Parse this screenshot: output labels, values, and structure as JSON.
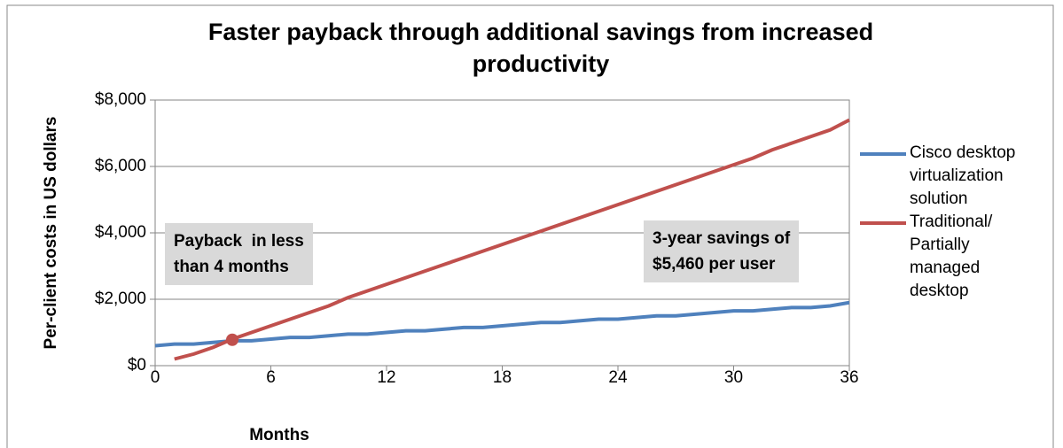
{
  "chart_data": {
    "type": "line",
    "title": "Faster payback through additional savings from increased productivity",
    "x_label": "Months",
    "y_label": "Per-client costs in US dollars",
    "x": [
      0,
      1,
      2,
      3,
      4,
      5,
      6,
      7,
      8,
      9,
      10,
      11,
      12,
      13,
      14,
      15,
      16,
      17,
      18,
      19,
      20,
      21,
      22,
      23,
      24,
      25,
      26,
      27,
      28,
      29,
      30,
      31,
      32,
      33,
      34,
      35,
      36
    ],
    "series": [
      {
        "name": "Cisco desktop virtualization solution",
        "color": "#4f81bd",
        "values": [
          600,
          650,
          650,
          700,
          750,
          750,
          800,
          850,
          850,
          900,
          950,
          950,
          1000,
          1050,
          1050,
          1100,
          1150,
          1150,
          1200,
          1250,
          1300,
          1300,
          1350,
          1400,
          1400,
          1450,
          1500,
          1500,
          1550,
          1600,
          1650,
          1650,
          1700,
          1750,
          1750,
          1800,
          1900
        ]
      },
      {
        "name": "Traditional/ Partially managed desktop",
        "color": "#c0504d",
        "values": [
          null,
          200,
          350,
          550,
          800,
          1000,
          1200,
          1400,
          1600,
          1800,
          2050,
          2250,
          2450,
          2650,
          2850,
          3050,
          3250,
          3450,
          3650,
          3850,
          4050,
          4250,
          4450,
          4650,
          4850,
          5050,
          5250,
          5450,
          5650,
          5850,
          6050,
          6250,
          6500,
          6700,
          6900,
          7100,
          7400
        ]
      }
    ],
    "payback_point": {
      "x": 4,
      "y": 780,
      "color": "#c0504d"
    },
    "annotations": [
      {
        "lines": [
          "Payback  in less",
          "than 4 months"
        ]
      },
      {
        "lines": [
          "3-year savings of",
          "$5,460 per user"
        ]
      }
    ],
    "xlim": [
      0,
      36
    ],
    "xticks": [
      0,
      6,
      12,
      18,
      24,
      30,
      36
    ],
    "ylim": [
      0,
      8000
    ],
    "yticks": [
      {
        "value": 0,
        "label": "$0"
      },
      {
        "value": 2000,
        "label": "$2,000"
      },
      {
        "value": 4000,
        "label": "$4,000"
      },
      {
        "value": 6000,
        "label": "$6,000"
      },
      {
        "value": 8000,
        "label": "$8,000"
      }
    ],
    "grid": true,
    "legend": "right"
  }
}
